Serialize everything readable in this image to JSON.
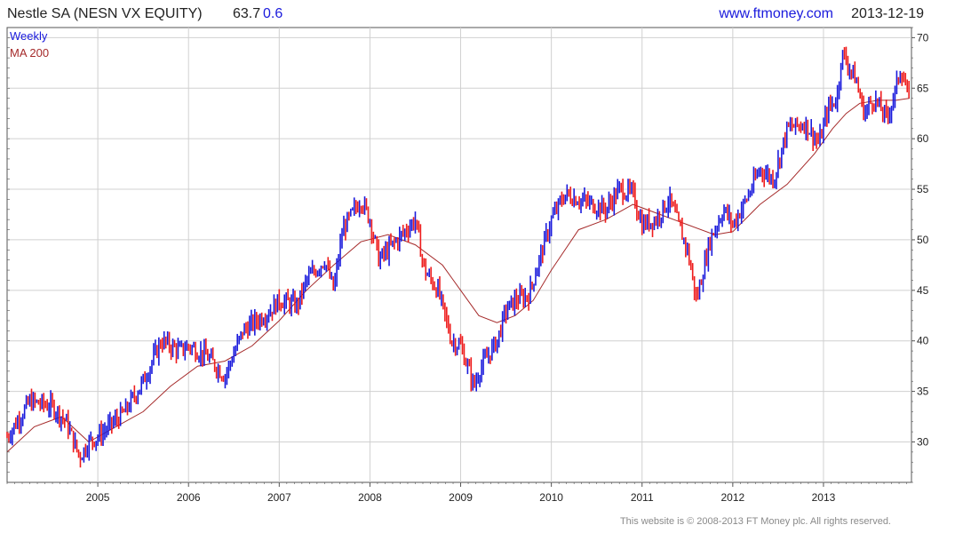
{
  "header": {
    "security": "Nestle SA (NESN VX EQUITY)",
    "last_price": "63.7",
    "change": "0.6",
    "site": "www.ftmoney.com",
    "date": "2013-12-19"
  },
  "footer": {
    "copyright": "This website is © 2008-2013 FT Money plc. All rights reserved."
  },
  "colors": {
    "up": "#1a1adc",
    "down": "#ee1c1c",
    "ma": "#a52a2a",
    "grid": "#d0d0d0",
    "axis": "#555555",
    "header_blue": "#1a1adc"
  },
  "chart_data": {
    "type": "line",
    "title": "Nestle SA (NESN VX EQUITY)",
    "interval_label": "Weekly",
    "ma_label": "MA 200",
    "x_tick_labels": [
      "2005",
      "2006",
      "2007",
      "2008",
      "2009",
      "2010",
      "2011",
      "2012",
      "2013"
    ],
    "y_tick_labels": [
      "30",
      "35",
      "40",
      "45",
      "50",
      "55",
      "60",
      "65",
      "70"
    ],
    "xlim": [
      2004.0,
      2013.97
    ],
    "ylim": [
      26,
      71
    ],
    "grid": true,
    "y_axis_side": "right",
    "series": [
      {
        "name": "Weekly",
        "style": "bars colored blue for up weeks, red for down weeks",
        "x": [
          2004.0,
          2004.25,
          2004.5,
          2004.65,
          2004.8,
          2004.9,
          2005.0,
          2005.3,
          2005.5,
          2005.7,
          2005.9,
          2006.0,
          2006.2,
          2006.4,
          2006.6,
          2006.9,
          2007.0,
          2007.2,
          2007.3,
          2007.5,
          2007.6,
          2007.7,
          2007.9,
          2008.0,
          2008.1,
          2008.3,
          2008.5,
          2008.6,
          2008.75,
          2008.9,
          2009.0,
          2009.15,
          2009.2,
          2009.4,
          2009.5,
          2009.6,
          2009.75,
          2009.9,
          2010.0,
          2010.15,
          2010.3,
          2010.6,
          2010.75,
          2010.9,
          2011.0,
          2011.15,
          2011.3,
          2011.5,
          2011.6,
          2011.75,
          2011.9,
          2012.0,
          2012.15,
          2012.3,
          2012.45,
          2012.6,
          2012.8,
          2012.95,
          2013.05,
          2013.15,
          2013.2,
          2013.35,
          2013.45,
          2013.55,
          2013.7,
          2013.8,
          2013.85,
          2013.95
        ],
        "y": [
          30.5,
          34,
          33.5,
          32,
          28.5,
          30,
          30.5,
          33,
          36,
          40,
          39,
          39.5,
          38.5,
          36.5,
          41,
          43,
          44,
          43.5,
          46,
          48,
          45,
          51,
          54,
          52,
          48,
          50,
          52,
          47,
          45,
          40,
          39.5,
          35.5,
          37,
          40,
          43,
          44,
          44.5,
          49,
          52,
          54.5,
          54,
          53,
          55,
          54.5,
          51.5,
          52,
          54,
          49,
          44,
          50,
          53,
          51.5,
          54,
          57,
          56,
          61,
          61.5,
          59.5,
          63,
          64,
          68.5,
          66,
          62.5,
          64,
          62,
          65,
          67,
          63.7
        ]
      },
      {
        "name": "MA 200",
        "style": "dark red line",
        "x": [
          2004.0,
          2004.3,
          2004.6,
          2004.9,
          2005.2,
          2005.5,
          2005.8,
          2006.1,
          2006.4,
          2006.7,
          2007.0,
          2007.3,
          2007.6,
          2007.9,
          2008.2,
          2008.5,
          2008.8,
          2009.0,
          2009.2,
          2009.4,
          2009.6,
          2009.8,
          2010.0,
          2010.3,
          2010.6,
          2010.9,
          2011.2,
          2011.5,
          2011.8,
          2012.0,
          2012.3,
          2012.6,
          2012.9,
          2013.1,
          2013.25,
          2013.4,
          2013.6,
          2013.8,
          2013.95
        ],
        "y": [
          29,
          31.5,
          32.5,
          30,
          31.5,
          33,
          35.5,
          37.5,
          38,
          39.5,
          42,
          45,
          47.5,
          49.8,
          50.5,
          49.5,
          47.5,
          45,
          42.5,
          41.8,
          42.5,
          44,
          47,
          51,
          52,
          53.5,
          52.5,
          51.5,
          50.5,
          50.8,
          53.5,
          55.5,
          58.5,
          61,
          62.5,
          63.5,
          63.8,
          63.8,
          64
        ]
      }
    ]
  }
}
